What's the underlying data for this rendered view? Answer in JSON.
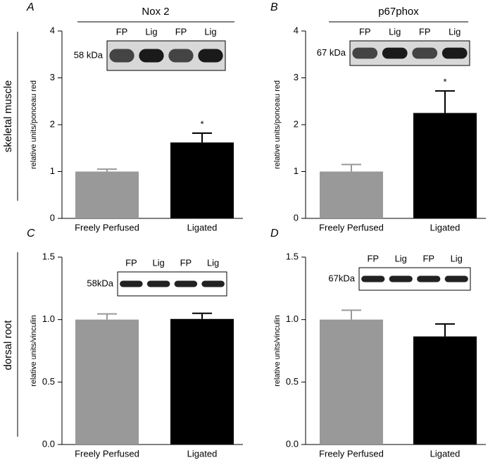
{
  "row_labels": [
    "skeletal muscle",
    "dorsal root"
  ],
  "chart_data": [
    {
      "type": "bar",
      "panel": "A",
      "title": "Nox 2",
      "ylabel": "relative units/ponceau red",
      "categories": [
        "Freely Perfused",
        "Ligated"
      ],
      "values": [
        1.0,
        1.62
      ],
      "errors": [
        0.05,
        0.2
      ],
      "significance": [
        null,
        "*"
      ],
      "colors": [
        "#999999",
        "#000000"
      ],
      "ylim": [
        0,
        4
      ],
      "yticks": [
        0,
        1,
        2,
        3,
        4
      ],
      "blot": {
        "lanes": [
          "FP",
          "Lig",
          "FP",
          "Lig"
        ],
        "marker": "58 kDa"
      }
    },
    {
      "type": "bar",
      "panel": "B",
      "title": "p67phox",
      "ylabel": "relative units/ponceau red",
      "categories": [
        "Freely Perfused",
        "Ligated"
      ],
      "values": [
        1.0,
        2.25
      ],
      "errors": [
        0.15,
        0.47
      ],
      "significance": [
        null,
        "*"
      ],
      "colors": [
        "#999999",
        "#000000"
      ],
      "ylim": [
        0,
        4
      ],
      "yticks": [
        0,
        1,
        2,
        3,
        4
      ],
      "blot": {
        "lanes": [
          "FP",
          "Lig",
          "FP",
          "Lig"
        ],
        "marker": "67 kDa"
      }
    },
    {
      "type": "bar",
      "panel": "C",
      "ylabel": "relative units/vinculin",
      "categories": [
        "Freely Perfused",
        "Ligated"
      ],
      "values": [
        1.0,
        1.005
      ],
      "errors": [
        0.045,
        0.045
      ],
      "colors": [
        "#999999",
        "#000000"
      ],
      "ylim": [
        0,
        1.5
      ],
      "yticks": [
        {
          "value": 0,
          "label": "0.0"
        },
        {
          "value": 0.5,
          "label": "0.5"
        },
        {
          "value": 1,
          "label": "1.0"
        },
        {
          "value": 1.5,
          "label": "1.5"
        }
      ],
      "blot": {
        "lanes": [
          "FP",
          "Lig",
          "FP",
          "Lig"
        ],
        "marker": "58kDa"
      }
    },
    {
      "type": "bar",
      "panel": "D",
      "ylabel": "relative units/vinculin",
      "categories": [
        "Freely Perfused",
        "Ligated"
      ],
      "values": [
        1.0,
        0.865
      ],
      "errors": [
        0.075,
        0.1
      ],
      "colors": [
        "#999999",
        "#000000"
      ],
      "ylim": [
        0,
        1.5
      ],
      "yticks": [
        {
          "value": 0,
          "label": "0.0"
        },
        {
          "value": 0.5,
          "label": "0.5"
        },
        {
          "value": 1,
          "label": "1.0"
        },
        {
          "value": 1.5,
          "label": "1.5"
        }
      ],
      "blot": {
        "lanes": [
          "FP",
          "Lig",
          "FP",
          "Lig"
        ],
        "marker": "67kDa"
      }
    }
  ]
}
